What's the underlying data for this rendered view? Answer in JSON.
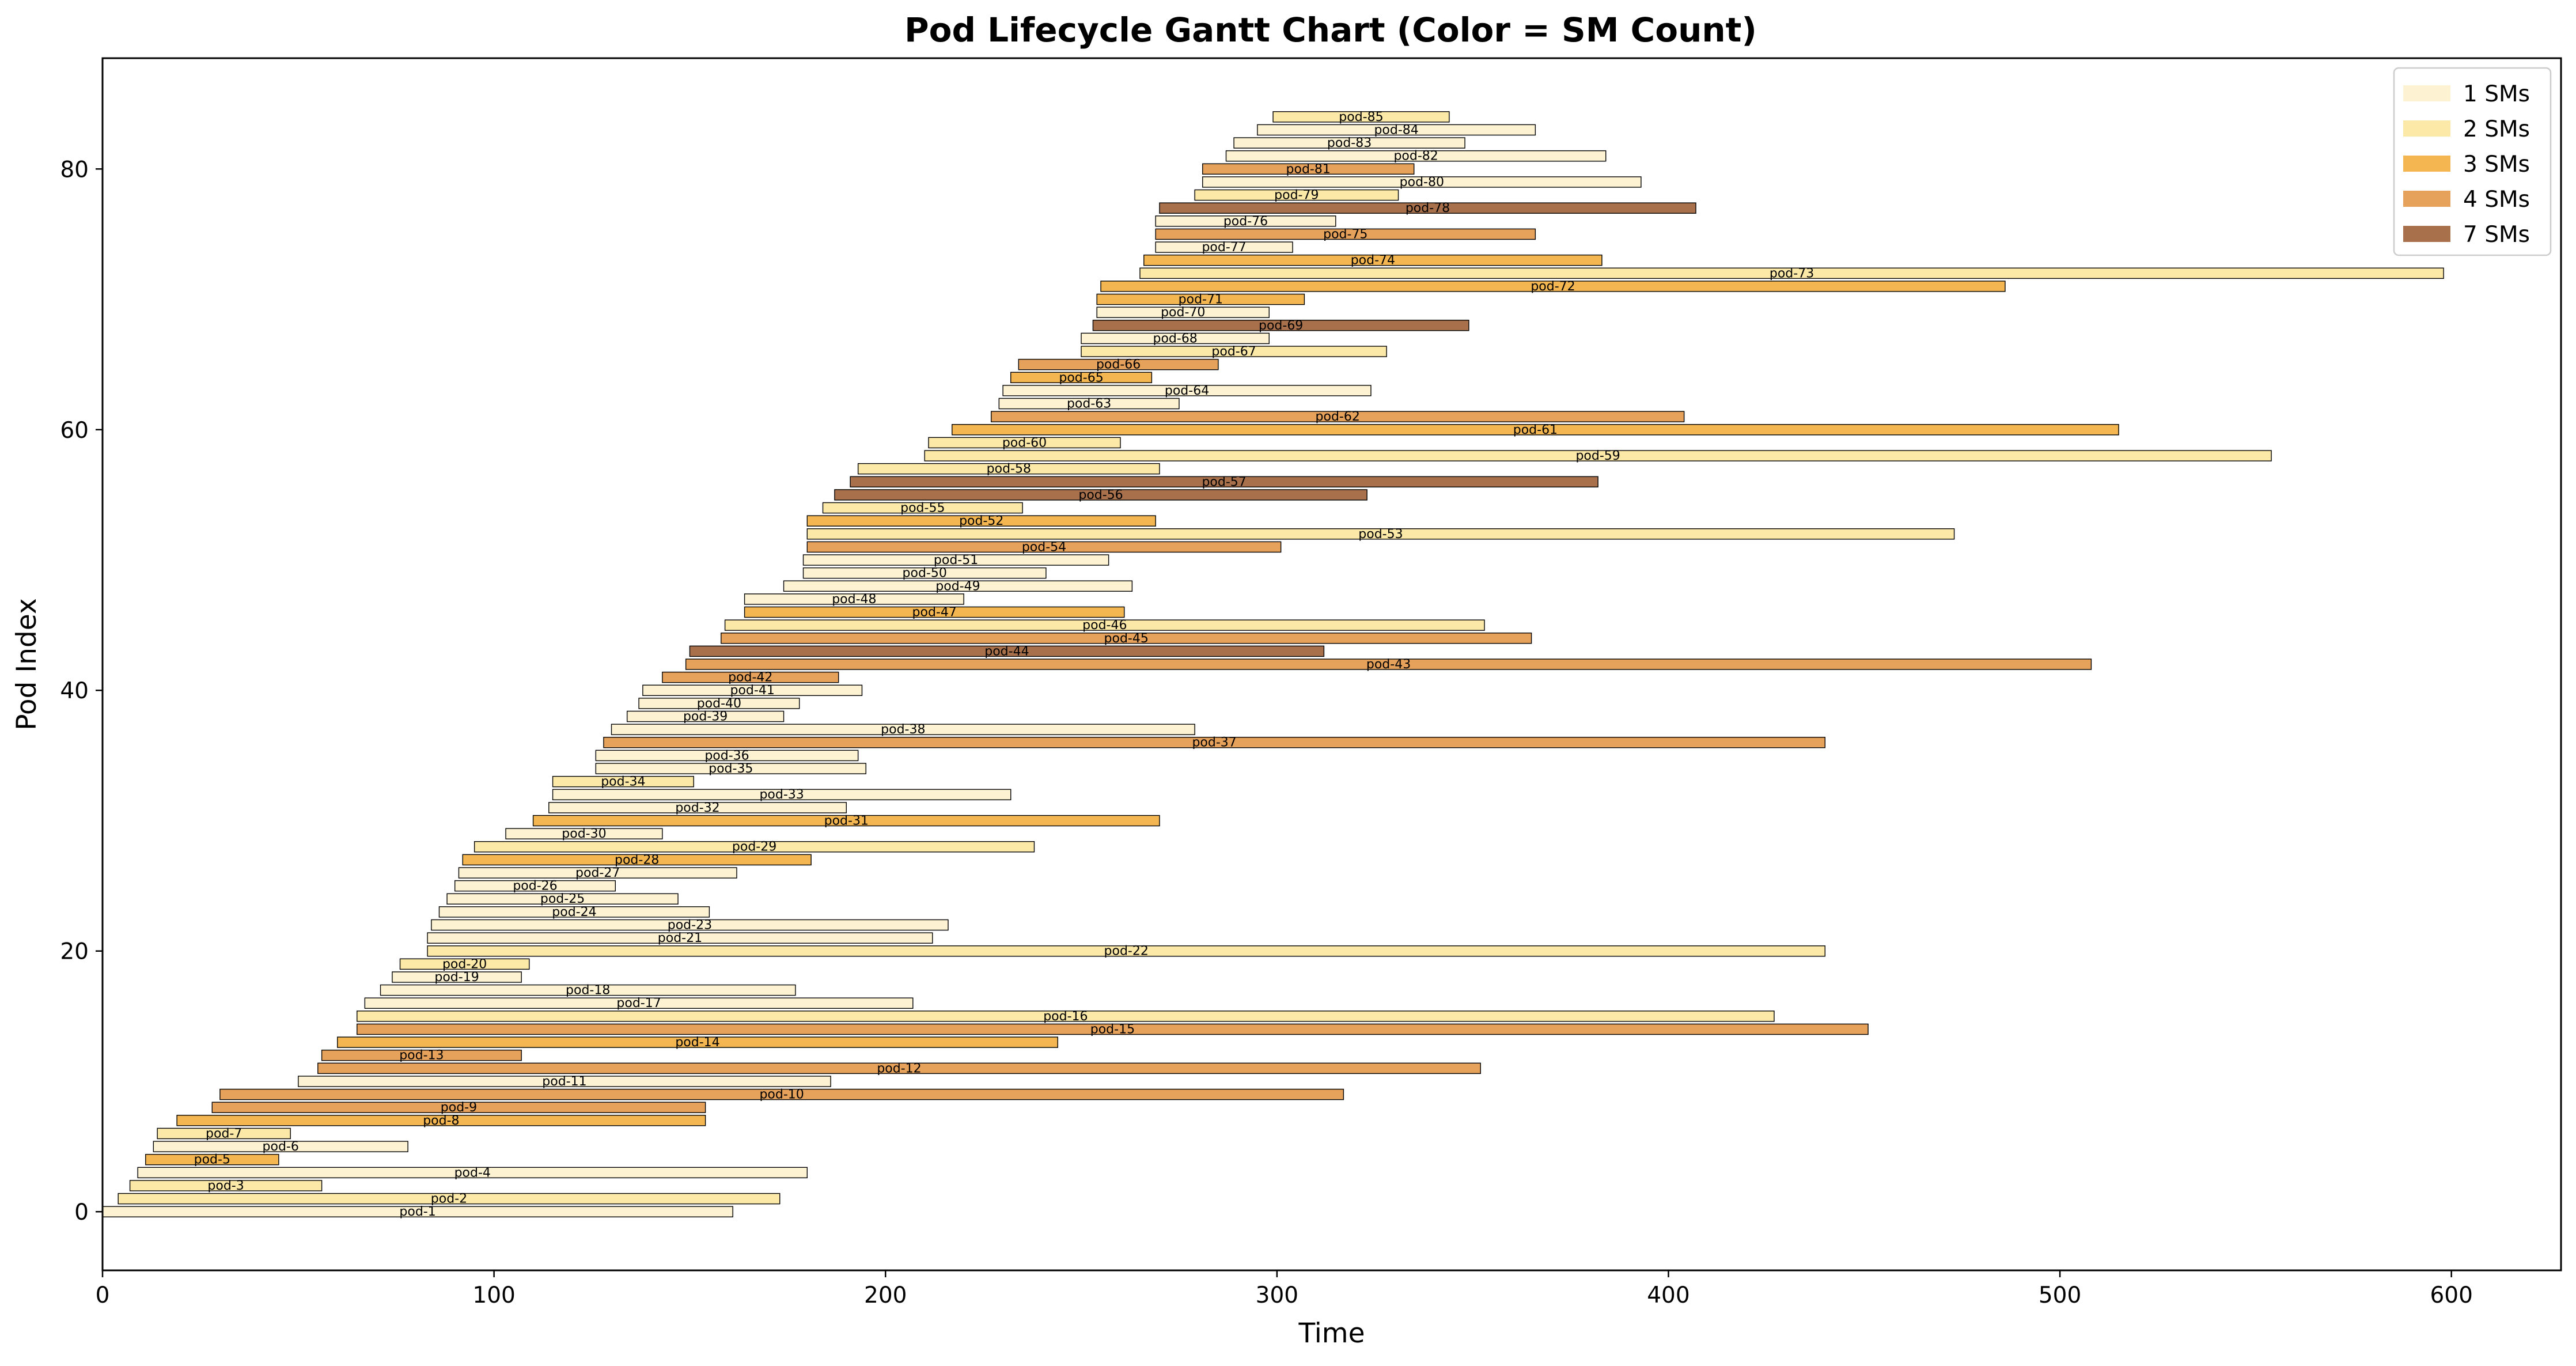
{
  "chart_data": {
    "type": "gantt",
    "title": "Pod Lifecycle Gantt Chart (Color = SM Count)",
    "xlabel": "Time",
    "ylabel": "Pod Index",
    "xlim": [
      0,
      628
    ],
    "ylim": [
      -4.5,
      88.5
    ],
    "xticks": [
      0,
      100,
      200,
      300,
      400,
      500,
      600
    ],
    "yticks": [
      0,
      20,
      40,
      60,
      80
    ],
    "grid": false,
    "legend_position": "top-right",
    "legend": [
      {
        "sm": 1,
        "label": "1 SMs",
        "color": "#fdf3d3"
      },
      {
        "sm": 2,
        "label": "2 SMs",
        "color": "#fce9a8"
      },
      {
        "sm": 3,
        "label": "3 SMs",
        "color": "#f4b651"
      },
      {
        "sm": 4,
        "label": "4 SMs",
        "color": "#e6a15a"
      },
      {
        "sm": 7,
        "label": "7 SMs",
        "color": "#a8714c"
      }
    ],
    "pods": [
      {
        "name": "pod-1",
        "index": 0,
        "start": 0,
        "end": 161,
        "sm": 1
      },
      {
        "name": "pod-2",
        "index": 1,
        "start": 4,
        "end": 173,
        "sm": 2
      },
      {
        "name": "pod-3",
        "index": 2,
        "start": 7,
        "end": 56,
        "sm": 2
      },
      {
        "name": "pod-4",
        "index": 3,
        "start": 9,
        "end": 180,
        "sm": 1
      },
      {
        "name": "pod-5",
        "index": 4,
        "start": 11,
        "end": 45,
        "sm": 3
      },
      {
        "name": "pod-6",
        "index": 5,
        "start": 13,
        "end": 78,
        "sm": 1
      },
      {
        "name": "pod-7",
        "index": 6,
        "start": 14,
        "end": 48,
        "sm": 2
      },
      {
        "name": "pod-8",
        "index": 7,
        "start": 19,
        "end": 154,
        "sm": 3
      },
      {
        "name": "pod-9",
        "index": 8,
        "start": 28,
        "end": 154,
        "sm": 4
      },
      {
        "name": "pod-10",
        "index": 9,
        "start": 30,
        "end": 317,
        "sm": 4
      },
      {
        "name": "pod-11",
        "index": 10,
        "start": 50,
        "end": 186,
        "sm": 1
      },
      {
        "name": "pod-12",
        "index": 11,
        "start": 55,
        "end": 352,
        "sm": 4
      },
      {
        "name": "pod-13",
        "index": 12,
        "start": 56,
        "end": 107,
        "sm": 4
      },
      {
        "name": "pod-14",
        "index": 13,
        "start": 60,
        "end": 244,
        "sm": 3
      },
      {
        "name": "pod-15",
        "index": 14,
        "start": 65,
        "end": 451,
        "sm": 4
      },
      {
        "name": "pod-16",
        "index": 15,
        "start": 65,
        "end": 427,
        "sm": 2
      },
      {
        "name": "pod-17",
        "index": 16,
        "start": 67,
        "end": 207,
        "sm": 1
      },
      {
        "name": "pod-18",
        "index": 17,
        "start": 71,
        "end": 177,
        "sm": 1
      },
      {
        "name": "pod-19",
        "index": 18,
        "start": 74,
        "end": 107,
        "sm": 1
      },
      {
        "name": "pod-20",
        "index": 19,
        "start": 76,
        "end": 109,
        "sm": 2
      },
      {
        "name": "pod-22",
        "index": 20,
        "start": 83,
        "end": 440,
        "sm": 2
      },
      {
        "name": "pod-21",
        "index": 21,
        "start": 83,
        "end": 212,
        "sm": 1
      },
      {
        "name": "pod-23",
        "index": 22,
        "start": 84,
        "end": 216,
        "sm": 1
      },
      {
        "name": "pod-24",
        "index": 23,
        "start": 86,
        "end": 155,
        "sm": 1
      },
      {
        "name": "pod-25",
        "index": 24,
        "start": 88,
        "end": 147,
        "sm": 1
      },
      {
        "name": "pod-26",
        "index": 25,
        "start": 90,
        "end": 131,
        "sm": 1
      },
      {
        "name": "pod-27",
        "index": 26,
        "start": 91,
        "end": 162,
        "sm": 1
      },
      {
        "name": "pod-28",
        "index": 27,
        "start": 92,
        "end": 181,
        "sm": 3
      },
      {
        "name": "pod-29",
        "index": 28,
        "start": 95,
        "end": 238,
        "sm": 2
      },
      {
        "name": "pod-30",
        "index": 29,
        "start": 103,
        "end": 143,
        "sm": 1
      },
      {
        "name": "pod-31",
        "index": 30,
        "start": 110,
        "end": 270,
        "sm": 3
      },
      {
        "name": "pod-32",
        "index": 31,
        "start": 114,
        "end": 190,
        "sm": 1
      },
      {
        "name": "pod-33",
        "index": 32,
        "start": 115,
        "end": 232,
        "sm": 1
      },
      {
        "name": "pod-34",
        "index": 33,
        "start": 115,
        "end": 151,
        "sm": 2
      },
      {
        "name": "pod-35",
        "index": 34,
        "start": 126,
        "end": 195,
        "sm": 1
      },
      {
        "name": "pod-36",
        "index": 35,
        "start": 126,
        "end": 193,
        "sm": 1
      },
      {
        "name": "pod-37",
        "index": 36,
        "start": 128,
        "end": 440,
        "sm": 4
      },
      {
        "name": "pod-38",
        "index": 37,
        "start": 130,
        "end": 279,
        "sm": 1
      },
      {
        "name": "pod-39",
        "index": 38,
        "start": 134,
        "end": 174,
        "sm": 1
      },
      {
        "name": "pod-40",
        "index": 39,
        "start": 137,
        "end": 178,
        "sm": 1
      },
      {
        "name": "pod-41",
        "index": 40,
        "start": 138,
        "end": 194,
        "sm": 1
      },
      {
        "name": "pod-42",
        "index": 41,
        "start": 143,
        "end": 188,
        "sm": 4
      },
      {
        "name": "pod-43",
        "index": 42,
        "start": 149,
        "end": 508,
        "sm": 4
      },
      {
        "name": "pod-44",
        "index": 43,
        "start": 150,
        "end": 312,
        "sm": 7
      },
      {
        "name": "pod-45",
        "index": 44,
        "start": 158,
        "end": 365,
        "sm": 4
      },
      {
        "name": "pod-46",
        "index": 45,
        "start": 159,
        "end": 353,
        "sm": 2
      },
      {
        "name": "pod-47",
        "index": 46,
        "start": 164,
        "end": 261,
        "sm": 3
      },
      {
        "name": "pod-48",
        "index": 47,
        "start": 164,
        "end": 220,
        "sm": 1
      },
      {
        "name": "pod-49",
        "index": 48,
        "start": 174,
        "end": 263,
        "sm": 1
      },
      {
        "name": "pod-50",
        "index": 49,
        "start": 179,
        "end": 241,
        "sm": 1
      },
      {
        "name": "pod-51",
        "index": 50,
        "start": 179,
        "end": 257,
        "sm": 1
      },
      {
        "name": "pod-54",
        "index": 51,
        "start": 180,
        "end": 301,
        "sm": 4
      },
      {
        "name": "pod-53",
        "index": 52,
        "start": 180,
        "end": 473,
        "sm": 2
      },
      {
        "name": "pod-52",
        "index": 53,
        "start": 180,
        "end": 269,
        "sm": 3
      },
      {
        "name": "pod-55",
        "index": 54,
        "start": 184,
        "end": 235,
        "sm": 2
      },
      {
        "name": "pod-56",
        "index": 55,
        "start": 187,
        "end": 323,
        "sm": 7
      },
      {
        "name": "pod-57",
        "index": 56,
        "start": 191,
        "end": 382,
        "sm": 7
      },
      {
        "name": "pod-58",
        "index": 57,
        "start": 193,
        "end": 270,
        "sm": 2
      },
      {
        "name": "pod-59",
        "index": 58,
        "start": 210,
        "end": 554,
        "sm": 2
      },
      {
        "name": "pod-60",
        "index": 59,
        "start": 211,
        "end": 260,
        "sm": 2
      },
      {
        "name": "pod-61",
        "index": 60,
        "start": 217,
        "end": 515,
        "sm": 3
      },
      {
        "name": "pod-62",
        "index": 61,
        "start": 227,
        "end": 404,
        "sm": 4
      },
      {
        "name": "pod-63",
        "index": 62,
        "start": 229,
        "end": 275,
        "sm": 1
      },
      {
        "name": "pod-64",
        "index": 63,
        "start": 230,
        "end": 324,
        "sm": 1
      },
      {
        "name": "pod-65",
        "index": 64,
        "start": 232,
        "end": 268,
        "sm": 3
      },
      {
        "name": "pod-66",
        "index": 65,
        "start": 234,
        "end": 285,
        "sm": 4
      },
      {
        "name": "pod-67",
        "index": 66,
        "start": 250,
        "end": 328,
        "sm": 2
      },
      {
        "name": "pod-68",
        "index": 67,
        "start": 250,
        "end": 298,
        "sm": 1
      },
      {
        "name": "pod-69",
        "index": 68,
        "start": 253,
        "end": 349,
        "sm": 7
      },
      {
        "name": "pod-70",
        "index": 69,
        "start": 254,
        "end": 298,
        "sm": 1
      },
      {
        "name": "pod-71",
        "index": 70,
        "start": 254,
        "end": 307,
        "sm": 3
      },
      {
        "name": "pod-72",
        "index": 71,
        "start": 255,
        "end": 486,
        "sm": 3
      },
      {
        "name": "pod-73",
        "index": 72,
        "start": 265,
        "end": 598,
        "sm": 2
      },
      {
        "name": "pod-74",
        "index": 73,
        "start": 266,
        "end": 383,
        "sm": 3
      },
      {
        "name": "pod-77",
        "index": 74,
        "start": 269,
        "end": 304,
        "sm": 1
      },
      {
        "name": "pod-75",
        "index": 75,
        "start": 269,
        "end": 366,
        "sm": 4
      },
      {
        "name": "pod-76",
        "index": 76,
        "start": 269,
        "end": 315,
        "sm": 1
      },
      {
        "name": "pod-78",
        "index": 77,
        "start": 270,
        "end": 407,
        "sm": 7
      },
      {
        "name": "pod-79",
        "index": 78,
        "start": 279,
        "end": 331,
        "sm": 2
      },
      {
        "name": "pod-80",
        "index": 79,
        "start": 281,
        "end": 393,
        "sm": 1
      },
      {
        "name": "pod-81",
        "index": 80,
        "start": 281,
        "end": 335,
        "sm": 4
      },
      {
        "name": "pod-82",
        "index": 81,
        "start": 287,
        "end": 384,
        "sm": 1
      },
      {
        "name": "pod-83",
        "index": 82,
        "start": 289,
        "end": 348,
        "sm": 1
      },
      {
        "name": "pod-84",
        "index": 83,
        "start": 295,
        "end": 366,
        "sm": 1
      },
      {
        "name": "pod-85",
        "index": 84,
        "start": 299,
        "end": 344,
        "sm": 2
      }
    ]
  }
}
